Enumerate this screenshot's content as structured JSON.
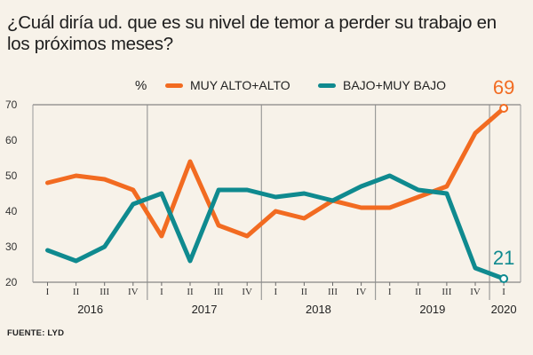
{
  "title": "¿Cuál diría ud. que es su nivel de temor a perder su trabajo en los próximos meses?",
  "source": "FUENTE: LYD",
  "chart_data": {
    "type": "line",
    "unit": "%",
    "x": [
      "I",
      "II",
      "III",
      "IV",
      "I",
      "II",
      "III",
      "IV",
      "I",
      "II",
      "III",
      "IV",
      "I",
      "II",
      "III",
      "IV",
      "I"
    ],
    "years": [
      {
        "label": "2016",
        "start": 0,
        "end": 3
      },
      {
        "label": "2017",
        "start": 4,
        "end": 7
      },
      {
        "label": "2018",
        "start": 8,
        "end": 11
      },
      {
        "label": "2019",
        "start": 12,
        "end": 15
      },
      {
        "label": "2020",
        "start": 16,
        "end": 16
      }
    ],
    "ylim": [
      20,
      70
    ],
    "yticks": [
      20,
      30,
      40,
      50,
      60,
      70
    ],
    "grid": "vertical lines at year boundaries",
    "legend_placement": "top",
    "series": [
      {
        "name": "MUY ALTO+ALTO",
        "color": "#f26b21",
        "values": [
          48,
          50,
          49,
          46,
          33,
          54,
          36,
          33,
          40,
          38,
          43,
          41,
          41,
          44,
          47,
          62,
          69
        ],
        "end_label": "69"
      },
      {
        "name": "BAJO+MUY BAJO",
        "color": "#0f8a8f",
        "values": [
          29,
          26,
          30,
          42,
          45,
          26,
          46,
          46,
          44,
          45,
          43,
          47,
          50,
          46,
          45,
          24,
          21
        ],
        "end_label": "21"
      }
    ]
  }
}
